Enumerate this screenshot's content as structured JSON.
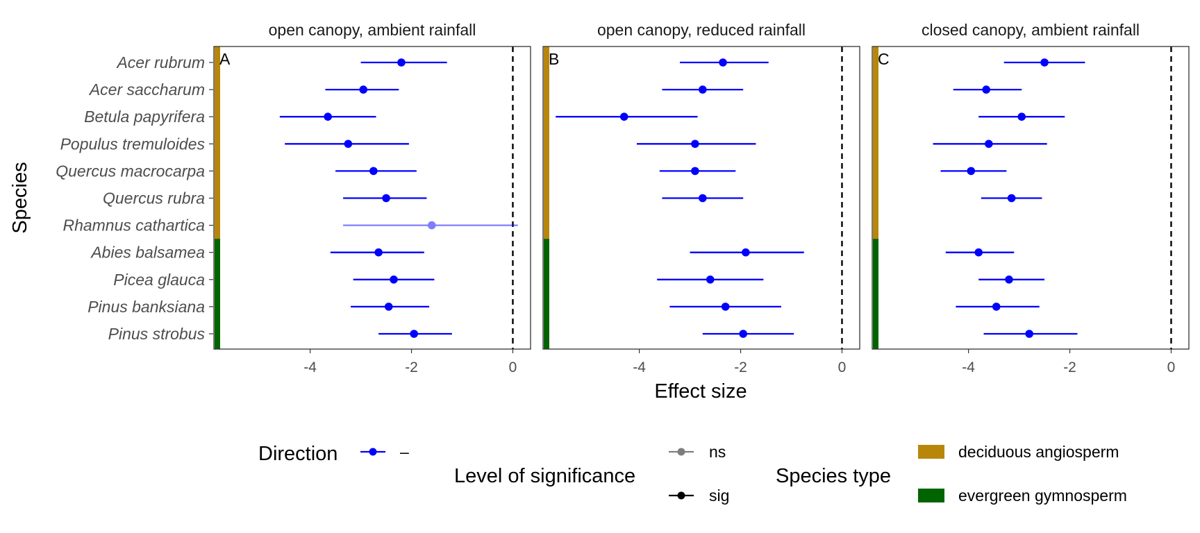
{
  "chart_data": {
    "type": "scatter",
    "subtype": "forest-plot-point-range",
    "xlabel": "Effect size",
    "ylabel": "Species",
    "xlim": [
      -5.9,
      0.35
    ],
    "xticks": [
      -4,
      -2,
      0
    ],
    "xtick_labels": [
      "-4",
      "-2",
      "0"
    ],
    "reference_line_x": 0,
    "grid": false,
    "species": [
      "Acer rubrum",
      "Acer saccharum",
      "Betula papyrifera",
      "Populus tremuloides",
      "Quercus macrocarpa",
      "Quercus rubra",
      "Rhamnus cathartica",
      "Abies balsamea",
      "Picea glauca",
      "Pinus banksiana",
      "Pinus strobus"
    ],
    "species_type": [
      "deciduous angiosperm",
      "deciduous angiosperm",
      "deciduous angiosperm",
      "deciduous angiosperm",
      "deciduous angiosperm",
      "deciduous angiosperm",
      "deciduous angiosperm",
      "evergreen gymnosperm",
      "evergreen gymnosperm",
      "evergreen gymnosperm",
      "evergreen gymnosperm"
    ],
    "panels": [
      {
        "title": "open canopy, ambient rainfall",
        "tag": "A",
        "rows": [
          {
            "species": "Acer rubrum",
            "estimate": -2.2,
            "low": -3.0,
            "high": -1.3,
            "significance": "sig"
          },
          {
            "species": "Acer saccharum",
            "estimate": -2.95,
            "low": -3.7,
            "high": -2.25,
            "significance": "sig"
          },
          {
            "species": "Betula papyrifera",
            "estimate": -3.65,
            "low": -4.6,
            "high": -2.7,
            "significance": "sig"
          },
          {
            "species": "Populus tremuloides",
            "estimate": -3.25,
            "low": -4.5,
            "high": -2.05,
            "significance": "sig"
          },
          {
            "species": "Quercus macrocarpa",
            "estimate": -2.75,
            "low": -3.5,
            "high": -1.9,
            "significance": "sig"
          },
          {
            "species": "Quercus rubra",
            "estimate": -2.5,
            "low": -3.35,
            "high": -1.7,
            "significance": "sig"
          },
          {
            "species": "Rhamnus cathartica",
            "estimate": -1.6,
            "low": -3.35,
            "high": 0.1,
            "significance": "ns"
          },
          {
            "species": "Abies balsamea",
            "estimate": -2.65,
            "low": -3.6,
            "high": -1.75,
            "significance": "sig"
          },
          {
            "species": "Picea glauca",
            "estimate": -2.35,
            "low": -3.15,
            "high": -1.55,
            "significance": "sig"
          },
          {
            "species": "Pinus banksiana",
            "estimate": -2.45,
            "low": -3.2,
            "high": -1.65,
            "significance": "sig"
          },
          {
            "species": "Pinus strobus",
            "estimate": -1.95,
            "low": -2.65,
            "high": -1.2,
            "significance": "sig"
          }
        ]
      },
      {
        "title": "open canopy, reduced rainfall",
        "tag": "B",
        "rows": [
          {
            "species": "Acer rubrum",
            "estimate": -2.35,
            "low": -3.2,
            "high": -1.45,
            "significance": "sig"
          },
          {
            "species": "Acer saccharum",
            "estimate": -2.75,
            "low": -3.55,
            "high": -1.95,
            "significance": "sig"
          },
          {
            "species": "Betula papyrifera",
            "estimate": -4.3,
            "low": -5.65,
            "high": -2.85,
            "significance": "sig"
          },
          {
            "species": "Populus tremuloides",
            "estimate": -2.9,
            "low": -4.05,
            "high": -1.7,
            "significance": "sig"
          },
          {
            "species": "Quercus macrocarpa",
            "estimate": -2.9,
            "low": -3.6,
            "high": -2.1,
            "significance": "sig"
          },
          {
            "species": "Quercus rubra",
            "estimate": -2.75,
            "low": -3.55,
            "high": -1.95,
            "significance": "sig"
          },
          {
            "species": "Abies balsamea",
            "estimate": -1.9,
            "low": -3.0,
            "high": -0.75,
            "significance": "sig"
          },
          {
            "species": "Picea glauca",
            "estimate": -2.6,
            "low": -3.65,
            "high": -1.55,
            "significance": "sig"
          },
          {
            "species": "Pinus banksiana",
            "estimate": -2.3,
            "low": -3.4,
            "high": -1.2,
            "significance": "sig"
          },
          {
            "species": "Pinus strobus",
            "estimate": -1.95,
            "low": -2.75,
            "high": -0.95,
            "significance": "sig"
          }
        ]
      },
      {
        "title": "closed canopy, ambient rainfall",
        "tag": "C",
        "rows": [
          {
            "species": "Acer rubrum",
            "estimate": -2.5,
            "low": -3.3,
            "high": -1.7,
            "significance": "sig"
          },
          {
            "species": "Acer saccharum",
            "estimate": -3.65,
            "low": -4.3,
            "high": -2.95,
            "significance": "sig"
          },
          {
            "species": "Betula papyrifera",
            "estimate": -2.95,
            "low": -3.8,
            "high": -2.1,
            "significance": "sig"
          },
          {
            "species": "Populus tremuloides",
            "estimate": -3.6,
            "low": -4.7,
            "high": -2.45,
            "significance": "sig"
          },
          {
            "species": "Quercus macrocarpa",
            "estimate": -3.95,
            "low": -4.55,
            "high": -3.25,
            "significance": "sig"
          },
          {
            "species": "Quercus rubra",
            "estimate": -3.15,
            "low": -3.75,
            "high": -2.55,
            "significance": "sig"
          },
          {
            "species": "Abies balsamea",
            "estimate": -3.8,
            "low": -4.45,
            "high": -3.1,
            "significance": "sig"
          },
          {
            "species": "Picea glauca",
            "estimate": -3.2,
            "low": -3.8,
            "high": -2.5,
            "significance": "sig"
          },
          {
            "species": "Pinus banksiana",
            "estimate": -3.45,
            "low": -4.25,
            "high": -2.6,
            "significance": "sig"
          },
          {
            "species": "Pinus strobus",
            "estimate": -2.8,
            "low": -3.7,
            "high": -1.85,
            "significance": "sig"
          }
        ]
      }
    ],
    "legend": {
      "placement": "bottom",
      "direction": {
        "title": "Direction",
        "entries": [
          {
            "label": "–",
            "color": "#0000ff"
          }
        ]
      },
      "significance": {
        "title": "Level of significance",
        "entries": [
          {
            "label": "ns",
            "opacity": 0.5
          },
          {
            "label": "sig",
            "opacity": 1
          }
        ]
      },
      "species_type": {
        "title": "Species type",
        "entries": [
          {
            "label": "deciduous angiosperm",
            "color": "#b8860b"
          },
          {
            "label": "evergreen gymnosperm",
            "color": "#006400"
          }
        ]
      }
    },
    "colors": {
      "point": "#0000ff",
      "deciduous": "#b8860b",
      "evergreen": "#006400",
      "panel_border": "#333333",
      "reference_line": "#000000"
    }
  }
}
